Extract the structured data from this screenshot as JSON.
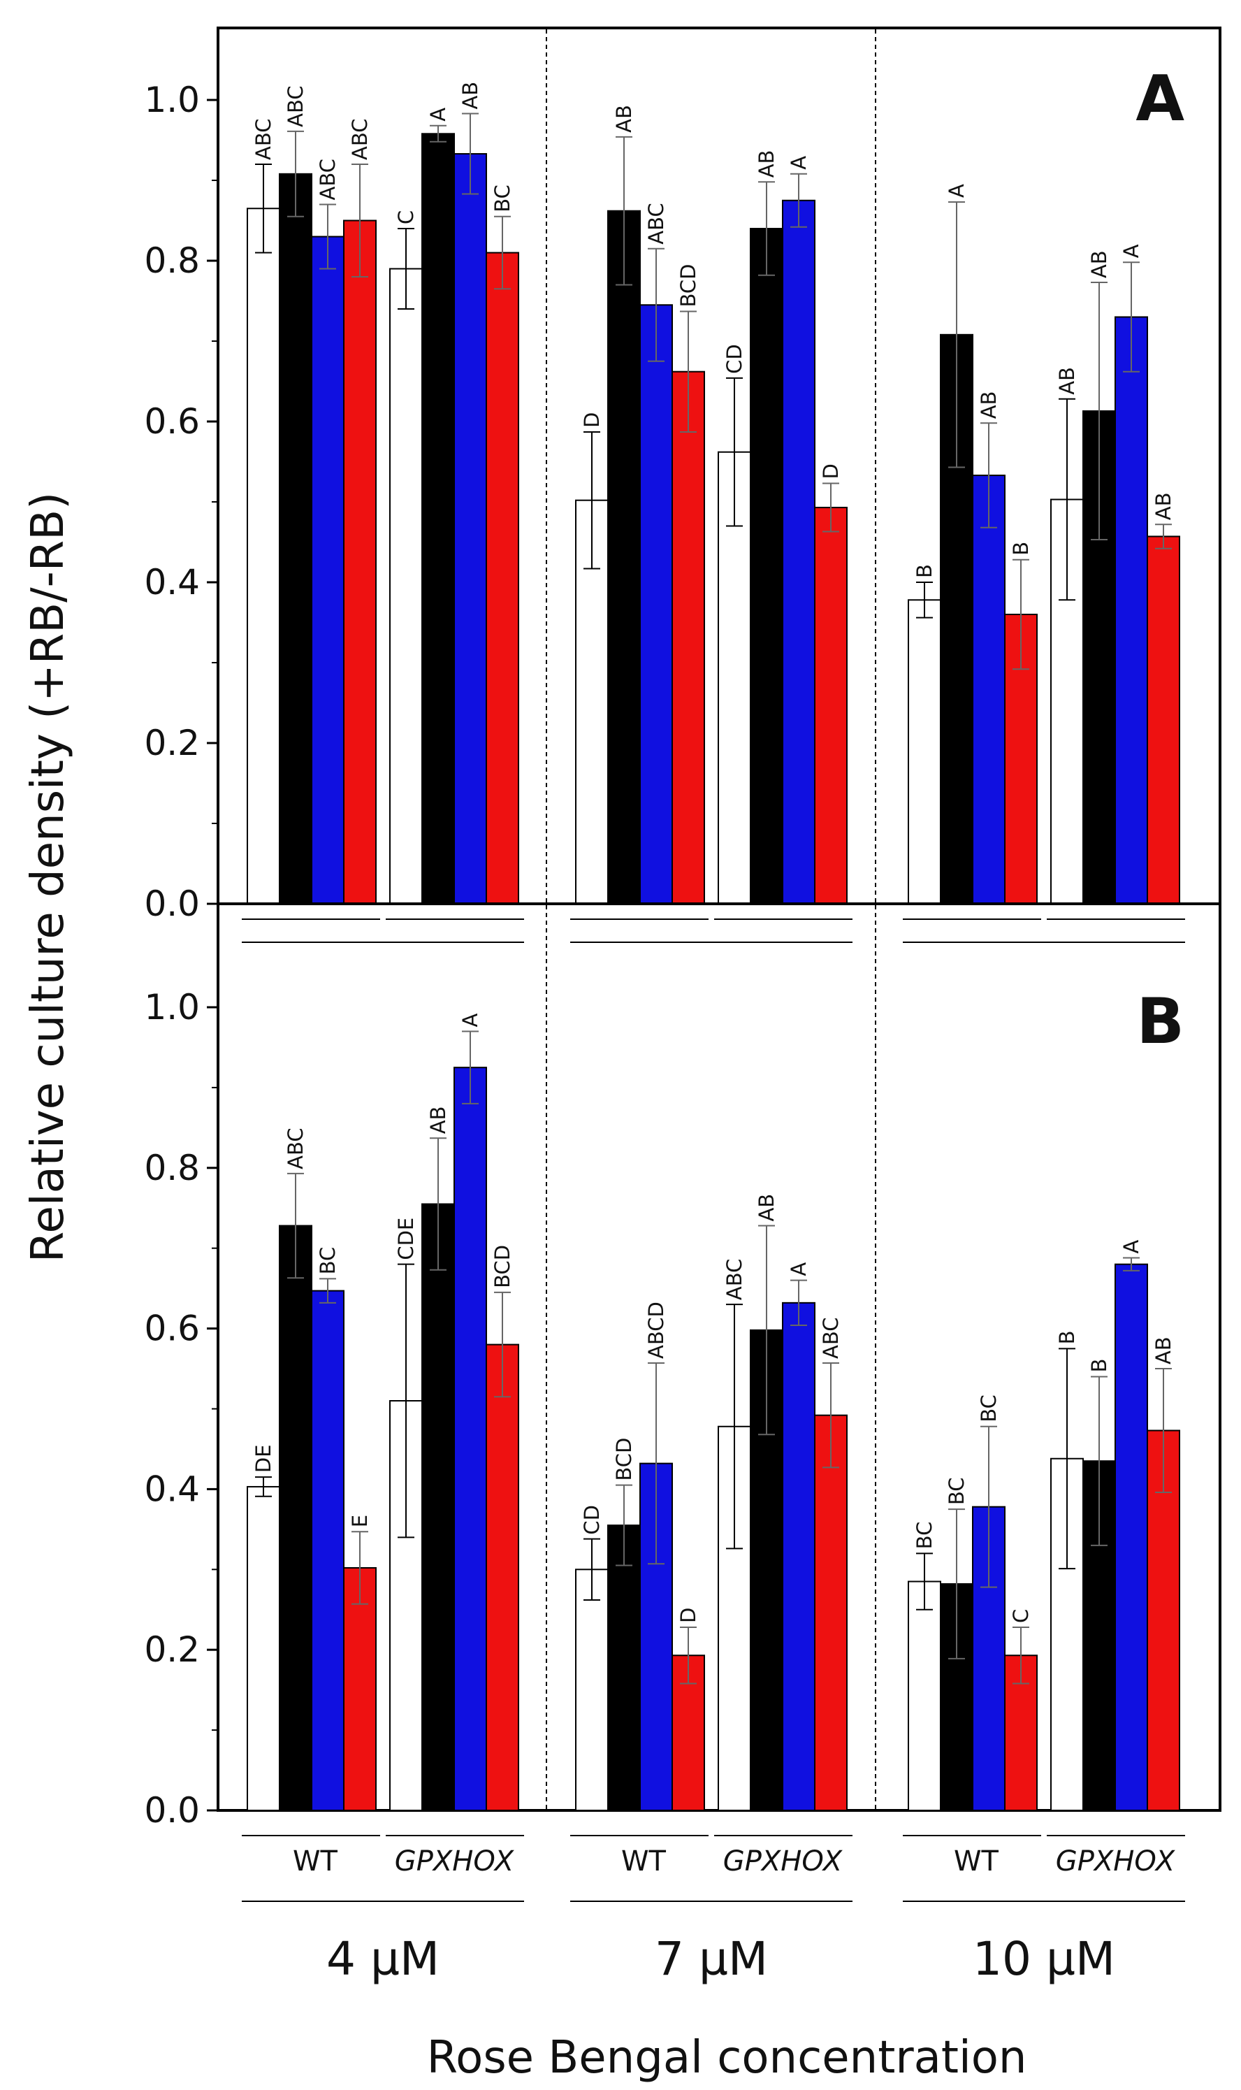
{
  "chart_data": {
    "type": "bar",
    "ylabel": "Relative culture density (+RB/-RB)",
    "xlabel": "Rose Bengal concentration",
    "ylim": [
      0,
      1.1
    ],
    "yticks": [
      "0.0",
      "0.2",
      "0.4",
      "0.6",
      "0.8",
      "1.0"
    ],
    "concentrations": [
      "4 µM",
      "7 µM",
      "10 µM"
    ],
    "genotypes": [
      "WT",
      "GPXHOX"
    ],
    "series_colors": [
      "#ffffff",
      "#000000",
      "#1010e0",
      "#ee1111"
    ],
    "panels": [
      {
        "label": "A",
        "groups": [
          {
            "conc": "4 µM",
            "bars": [
              {
                "value": 0.865,
                "err": 0.055,
                "sig": "ABC"
              },
              {
                "value": 0.908,
                "err": 0.053,
                "sig": "ABC"
              },
              {
                "value": 0.83,
                "err": 0.04,
                "sig": "ABC"
              },
              {
                "value": 0.85,
                "err": 0.07,
                "sig": "ABC"
              },
              {
                "value": 0.79,
                "err": 0.05,
                "sig": "C"
              },
              {
                "value": 0.958,
                "err": 0.01,
                "sig": "A"
              },
              {
                "value": 0.933,
                "err": 0.05,
                "sig": "AB"
              },
              {
                "value": 0.81,
                "err": 0.045,
                "sig": "BC"
              }
            ]
          },
          {
            "conc": "7 µM",
            "bars": [
              {
                "value": 0.502,
                "err": 0.085,
                "sig": "D"
              },
              {
                "value": 0.862,
                "err": 0.092,
                "sig": "AB"
              },
              {
                "value": 0.745,
                "err": 0.07,
                "sig": "ABC"
              },
              {
                "value": 0.662,
                "err": 0.075,
                "sig": "BCD"
              },
              {
                "value": 0.562,
                "err": 0.092,
                "sig": "CD"
              },
              {
                "value": 0.84,
                "err": 0.058,
                "sig": "AB"
              },
              {
                "value": 0.875,
                "err": 0.033,
                "sig": "A"
              },
              {
                "value": 0.493,
                "err": 0.03,
                "sig": "D"
              }
            ]
          },
          {
            "conc": "10 µM",
            "bars": [
              {
                "value": 0.378,
                "err": 0.022,
                "sig": "B"
              },
              {
                "value": 0.708,
                "err": 0.165,
                "sig": "A"
              },
              {
                "value": 0.533,
                "err": 0.065,
                "sig": "AB"
              },
              {
                "value": 0.36,
                "err": 0.068,
                "sig": "B"
              },
              {
                "value": 0.503,
                "err": 0.125,
                "sig": "AB"
              },
              {
                "value": 0.613,
                "err": 0.16,
                "sig": "AB"
              },
              {
                "value": 0.73,
                "err": 0.068,
                "sig": "A"
              },
              {
                "value": 0.457,
                "err": 0.015,
                "sig": "AB"
              }
            ]
          }
        ]
      },
      {
        "label": "B",
        "groups": [
          {
            "conc": "4 µM",
            "bars": [
              {
                "value": 0.403,
                "err": 0.012,
                "sig": "DE"
              },
              {
                "value": 0.728,
                "err": 0.065,
                "sig": "ABC"
              },
              {
                "value": 0.647,
                "err": 0.015,
                "sig": "BC"
              },
              {
                "value": 0.302,
                "err": 0.045,
                "sig": "E"
              },
              {
                "value": 0.51,
                "err": 0.17,
                "sig": "CDE"
              },
              {
                "value": 0.755,
                "err": 0.082,
                "sig": "AB"
              },
              {
                "value": 0.925,
                "err": 0.045,
                "sig": "A"
              },
              {
                "value": 0.58,
                "err": 0.065,
                "sig": "BCD"
              }
            ]
          },
          {
            "conc": "7 µM",
            "bars": [
              {
                "value": 0.3,
                "err": 0.038,
                "sig": "CD"
              },
              {
                "value": 0.355,
                "err": 0.05,
                "sig": "BCD"
              },
              {
                "value": 0.432,
                "err": 0.125,
                "sig": "ABCD"
              },
              {
                "value": 0.193,
                "err": 0.035,
                "sig": "D"
              },
              {
                "value": 0.478,
                "err": 0.152,
                "sig": "ABC"
              },
              {
                "value": 0.598,
                "err": 0.13,
                "sig": "AB"
              },
              {
                "value": 0.632,
                "err": 0.028,
                "sig": "A"
              },
              {
                "value": 0.492,
                "err": 0.065,
                "sig": "ABC"
              }
            ]
          },
          {
            "conc": "10 µM",
            "bars": [
              {
                "value": 0.285,
                "err": 0.035,
                "sig": "BC"
              },
              {
                "value": 0.282,
                "err": 0.093,
                "sig": "BC"
              },
              {
                "value": 0.378,
                "err": 0.1,
                "sig": "BC"
              },
              {
                "value": 0.193,
                "err": 0.035,
                "sig": "C"
              },
              {
                "value": 0.438,
                "err": 0.137,
                "sig": "B"
              },
              {
                "value": 0.435,
                "err": 0.105,
                "sig": "B"
              },
              {
                "value": 0.68,
                "err": 0.008,
                "sig": "A"
              },
              {
                "value": 0.473,
                "err": 0.077,
                "sig": "AB"
              }
            ]
          }
        ]
      }
    ]
  }
}
